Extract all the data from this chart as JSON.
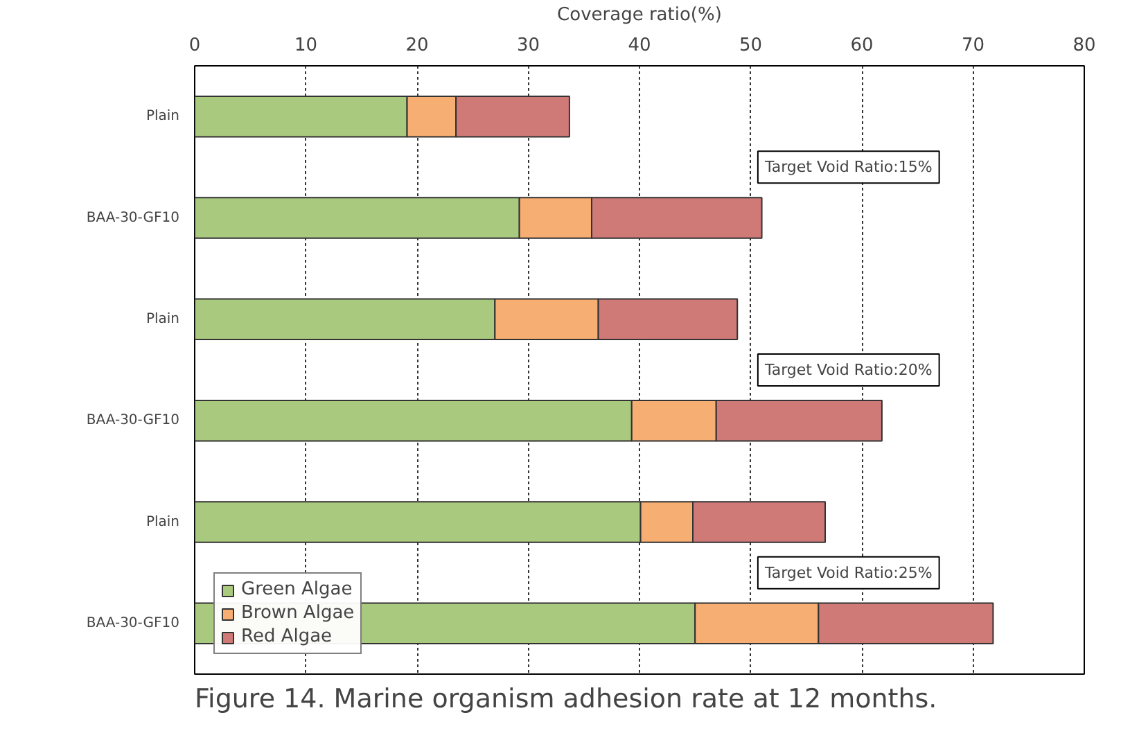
{
  "chart_data": {
    "type": "bar",
    "orientation": "horizontal",
    "stacked": true,
    "title": "Figure 14.  Marine organism adhesion rate at 12 months.",
    "xlabel": "Coverage ratio(%)",
    "categories": [
      "Plain",
      "BAA-30-GF10",
      "Plain",
      "BAA-30-GF10",
      "Plain",
      "BAA-30-GF10"
    ],
    "series": [
      {
        "name": "Green Algae",
        "color": "#a9c97f",
        "values": [
          19.1,
          29.2,
          27.0,
          39.3,
          40.1,
          45.0
        ]
      },
      {
        "name": "Brown Algae",
        "color": "#f7ae72",
        "values": [
          4.4,
          6.5,
          9.3,
          7.6,
          4.7,
          11.1
        ]
      },
      {
        "name": "Red Algae",
        "color": "#d07a78",
        "values": [
          10.2,
          15.3,
          12.5,
          14.9,
          11.9,
          15.7
        ]
      }
    ],
    "xlim": [
      0,
      80
    ],
    "xticks": [
      0,
      10,
      20,
      30,
      40,
      50,
      60,
      70,
      80
    ],
    "grid": "x",
    "legend": "bottom left",
    "annotations": [
      "Target Void Ratio:15%",
      "Target Void Ratio:20%",
      "Target Void Ratio:25%"
    ]
  }
}
